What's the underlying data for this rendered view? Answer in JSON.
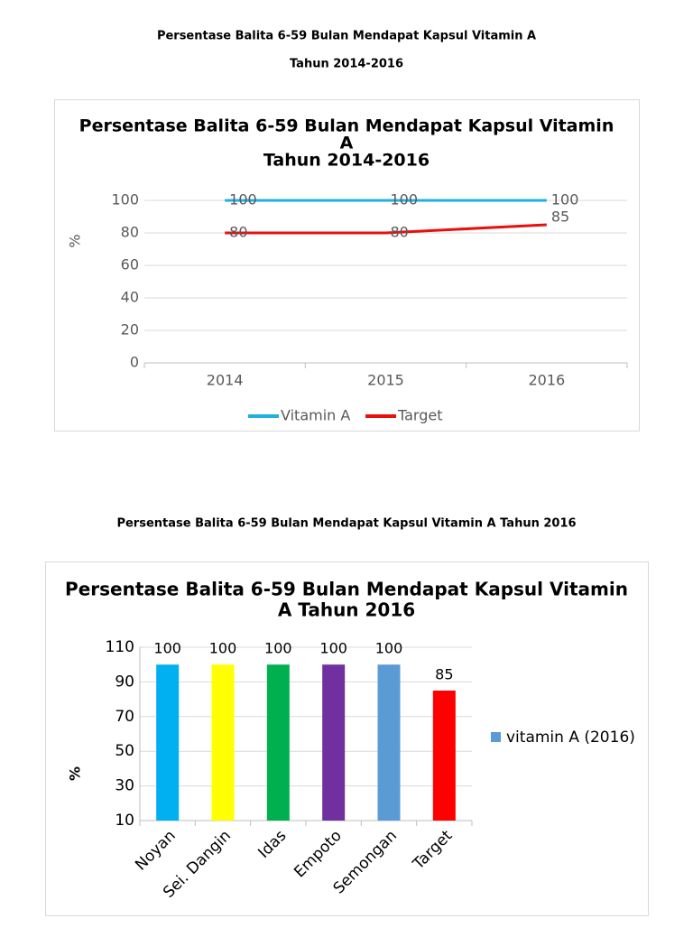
{
  "captions": [
    "Persentase Balita 6-59 Bulan Mendapat Kapsul Vitamin A",
    "Tahun 2014-2016",
    "Persentase Balita 6-59 Bulan Mendapat Kapsul Vitamin A Tahun 2016"
  ],
  "chart_data": [
    {
      "type": "line",
      "title": [
        "Persentase Balita 6-59 Bulan Mendapat Kapsul Vitamin",
        "A",
        "Tahun 2014-2016"
      ],
      "y_label": "%",
      "categories": [
        "2014",
        "2015",
        "2016"
      ],
      "series": [
        {
          "name": "Vitamin A",
          "color": "#1fb0e0",
          "values": [
            100,
            100,
            100
          ]
        },
        {
          "name": "Target",
          "color": "#e8100c",
          "values": [
            80,
            80,
            85
          ]
        }
      ],
      "ylim": [
        0,
        100
      ],
      "yticks": [
        0,
        20,
        40,
        60,
        80,
        100
      ],
      "grid": true,
      "legend": "bottom"
    },
    {
      "type": "bar",
      "title": [
        "Persentase Balita 6-59 Bulan Mendapat Kapsul Vitamin",
        "A Tahun 2016"
      ],
      "y_label": "%",
      "categories": [
        "Noyan",
        "Sei. Dangin",
        "Idas",
        "Empoto",
        "Semongan",
        "Target"
      ],
      "series": [
        {
          "name": "vitamin A (2016)",
          "color": "#5b9bd5",
          "values": [
            100,
            100,
            100,
            100,
            100,
            85
          ]
        }
      ],
      "bar_colors": [
        "#00b0f0",
        "#ffff00",
        "#00b050",
        "#7030a0",
        "#5b9bd5",
        "#ff0000"
      ],
      "ylim": [
        10,
        110
      ],
      "yticks": [
        10,
        30,
        50,
        70,
        90,
        110
      ],
      "grid": true,
      "legend": "right"
    }
  ]
}
